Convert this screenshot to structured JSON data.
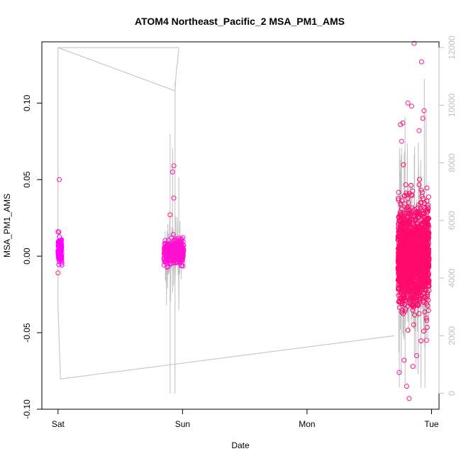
{
  "chart_data": {
    "type": "scatter",
    "title": "ATOM4 Northeast_Pacific_2 MSA_PM1_AMS",
    "xlabel": "Date",
    "ylabel": "MSA_PM1_AMS",
    "x_ticks": [
      "Sat",
      "Sun",
      "Mon",
      "Tue"
    ],
    "x_tick_days": [
      0,
      1,
      2,
      3
    ],
    "xlim_days": [
      -0.13,
      3.06
    ],
    "ylim": [
      -0.1,
      0.14
    ],
    "y_ticks": [
      -0.1,
      -0.05,
      0.0,
      0.05,
      0.1
    ],
    "y_tick_labels": [
      "-0.10",
      "-0.05",
      "0.00",
      "0.05",
      "0.10"
    ],
    "y2_ticks": [
      0,
      2000,
      4000,
      6000,
      8000,
      10000,
      12000
    ],
    "y2_tick_labels": [
      "0",
      "2000",
      "4000",
      "6000",
      "8000",
      "10000",
      "12000"
    ],
    "y2lim": [
      -550,
      12200
    ],
    "grid": false,
    "series_color": "#ff1493",
    "secondary_color": "#c0c0c0",
    "series": [
      {
        "clusters": [
          {
            "x_range_days": [
              0.0,
              0.03
            ],
            "y_center": 0.004,
            "y_spread": 0.004,
            "n": 130,
            "color": "#ff00ff"
          },
          {
            "x_range_days": [
              0.85,
              1.01
            ],
            "y_center": 0.003,
            "y_spread": 0.004,
            "n": 320,
            "color": "#ff10d0"
          },
          {
            "x_range_days": [
              2.73,
              2.98
            ],
            "y_center": 0.0,
            "y_spread": 0.016,
            "n": 1700,
            "color": "#ff0a6e"
          }
        ],
        "outliers": [
          {
            "x": 0.01,
            "y": 0.05
          },
          {
            "x": 0.0,
            "y": -0.011
          },
          {
            "x": 0.0,
            "y": 0.016
          },
          {
            "x": 0.93,
            "y": 0.059
          },
          {
            "x": 0.92,
            "y": 0.055
          },
          {
            "x": 0.93,
            "y": 0.038
          },
          {
            "x": 0.9,
            "y": 0.027
          },
          {
            "x": 2.86,
            "y": 0.139
          },
          {
            "x": 2.92,
            "y": 0.127
          },
          {
            "x": 2.81,
            "y": 0.1
          },
          {
            "x": 2.94,
            "y": 0.095
          },
          {
            "x": 2.75,
            "y": 0.086
          },
          {
            "x": 2.8,
            "y": -0.085
          },
          {
            "x": 2.82,
            "y": -0.093
          },
          {
            "x": 2.84,
            "y": 0.098
          },
          {
            "x": 2.77,
            "y": 0.087
          },
          {
            "x": 2.9,
            "y": 0.082
          },
          {
            "x": 2.93,
            "y": 0.09
          },
          {
            "x": 2.74,
            "y": -0.076
          },
          {
            "x": 2.85,
            "y": -0.072
          },
          {
            "x": 2.88,
            "y": -0.065
          },
          {
            "x": 2.96,
            "y": -0.055
          },
          {
            "x": 2.76,
            "y": 0.075
          },
          {
            "x": 2.78,
            "y": -0.068
          }
        ]
      },
      {
        "axis": "secondary",
        "type": "line",
        "points": [
          [
            0.0,
            12000
          ],
          [
            0.97,
            12000
          ],
          [
            0.96,
            11500
          ],
          [
            0.95,
            11200
          ],
          [
            0.94,
            10500
          ],
          [
            0.0,
            12000
          ],
          [
            0.0,
            3000
          ],
          [
            0.02,
            500
          ],
          [
            2.7,
            2000
          ]
        ],
        "sun_spikes": [
          {
            "x": 0.9,
            "lo": 0,
            "hi": 9000
          },
          {
            "x": 0.92,
            "lo": 3500,
            "hi": 8500
          },
          {
            "x": 0.94,
            "lo": 0,
            "hi": 10800
          },
          {
            "x": 0.97,
            "lo": 3500,
            "hi": 7500
          }
        ],
        "tue_band": {
          "x_range_days": [
            2.73,
            2.98
          ],
          "lo": 200,
          "hi": 12000,
          "n": 260
        }
      }
    ]
  }
}
